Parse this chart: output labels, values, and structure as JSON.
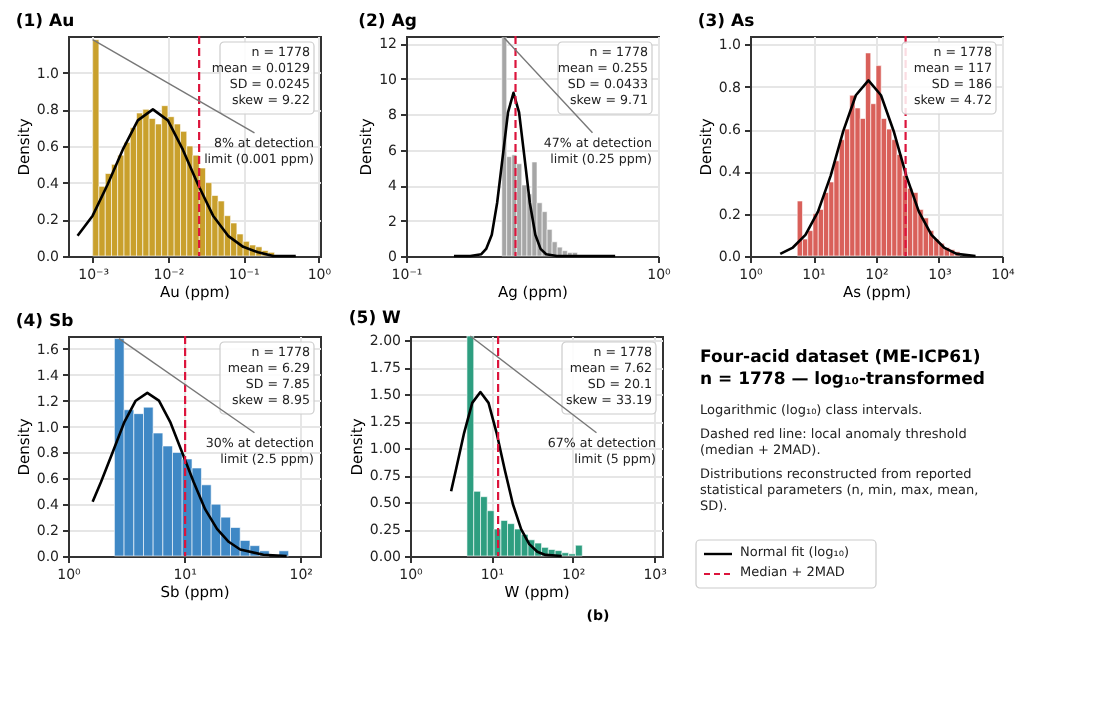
{
  "chart_data": [
    {
      "type": "histogram",
      "title": "(1) Au",
      "xlabel": "Au (ppm)",
      "ylabel": "Density",
      "log": "x",
      "grid": true,
      "xlim": [
        0.00047,
        1.05
      ],
      "xticks": [
        {
          "value": 0.001,
          "label": "10⁻³"
        },
        {
          "value": 0.01,
          "label": "10⁻²"
        },
        {
          "value": 0.1,
          "label": "10⁻¹"
        },
        {
          "value": 1,
          "label": "10⁰"
        }
      ],
      "ylim": [
        0,
        1.2
      ],
      "yticks": [
        {
          "value": 0,
          "label": "0.0"
        },
        {
          "value": 0.2,
          "label": "0.2"
        },
        {
          "value": 0.4,
          "label": "0.4"
        },
        {
          "value": 0.6,
          "label": "0.6"
        },
        {
          "value": 0.8,
          "label": "0.8"
        },
        {
          "value": 1,
          "label": "1.0"
        }
      ],
      "bins": [
        0.001,
        0.00121,
        0.00147,
        0.00178,
        0.00215,
        0.00261,
        0.00316,
        0.00383,
        0.00464,
        0.00562,
        0.00681,
        0.00825,
        0.01,
        0.0121,
        0.0147,
        0.0178,
        0.0215,
        0.0261,
        0.0316,
        0.0383,
        0.0464,
        0.0562,
        0.0681,
        0.0825,
        0.1,
        0.121,
        0.147,
        0.178,
        0.215,
        0.261
      ],
      "series": [
        {
          "color": "#c9a02c",
          "values": [
            1.18,
            0.38,
            0.45,
            0.5,
            0.55,
            0.62,
            0.7,
            0.78,
            0.8,
            0.75,
            0.72,
            0.82,
            0.76,
            0.72,
            0.68,
            0.6,
            0.55,
            0.48,
            0.4,
            0.33,
            0.3,
            0.22,
            0.18,
            0.12,
            0.08,
            0.06,
            0.05,
            0.03,
            0.02
          ]
        },
        {
          "type": "line",
          "color": "#000000",
          "x": [
            0.00063,
            0.001,
            0.00158,
            0.00251,
            0.00398,
            0.00631,
            0.01,
            0.0158,
            0.0251,
            0.0398,
            0.0631,
            0.1,
            0.158,
            0.251,
            0.5
          ],
          "values": [
            0.11,
            0.22,
            0.39,
            0.58,
            0.74,
            0.8,
            0.74,
            0.58,
            0.39,
            0.22,
            0.11,
            0.05,
            0.02,
            0,
            0
          ]
        }
      ],
      "ref_lines": [
        {
          "axis": "x",
          "value": 0.026,
          "color": "#dc143c",
          "line_style": "dashed"
        }
      ],
      "annotations": [
        "n = 1778",
        "mean = 0.0129",
        "SD = 0.0245",
        "skew = 9.22",
        {
          "text": "8% at detection\nlimit (0.001 ppm)",
          "x": 0.001,
          "y": 1.18
        }
      ]
    },
    {
      "type": "histogram",
      "title": "(2) Ag",
      "xlabel": "Ag (ppm)",
      "ylabel": "Density",
      "log": "x",
      "grid": true,
      "xlim": [
        0.1,
        1
      ],
      "xticks": [
        {
          "value": 0.1,
          "label": "10⁻¹"
        },
        {
          "value": 1,
          "label": "10⁰"
        }
      ],
      "ylim": [
        0,
        12.4
      ],
      "yticks": [
        0,
        2,
        4,
        6,
        8,
        10,
        12
      ],
      "bins": [
        0.24,
        0.251,
        0.263,
        0.275,
        0.288,
        0.302,
        0.316,
        0.331,
        0.347,
        0.363,
        0.38,
        0.398,
        0.417,
        0.437,
        0.457,
        0.479,
        0.501
      ],
      "series": [
        {
          "color": "#a6a6a6",
          "values": [
            12.3,
            5.6,
            5.7,
            5.2,
            4.0,
            3.5,
            5.3,
            3.0,
            2.5,
            1.5,
            0.8,
            0.5,
            0.3,
            0.2,
            0.2,
            null
          ]
        },
        {
          "type": "line",
          "color": "#000000",
          "x": [
            0.155,
            0.18,
            0.199,
            0.208,
            0.219,
            0.23,
            0.242,
            0.254,
            0.267,
            0.281,
            0.295,
            0.31,
            0.326,
            0.342,
            0.36,
            0.397,
            0.676
          ],
          "values": [
            0,
            0,
            0.1,
            0.4,
            1.2,
            3.0,
            5.6,
            8.1,
            9.2,
            8.1,
            5.6,
            3.0,
            1.2,
            0.4,
            0.1,
            0,
            0
          ]
        }
      ],
      "ref_lines": [
        {
          "axis": "x",
          "value": 0.272,
          "color": "#dc143c",
          "line_style": "dashed"
        }
      ],
      "annotations": [
        "n = 1778",
        "mean = 0.255",
        "SD = 0.0433",
        "skew = 9.71",
        {
          "text": "47% at detection\nlimit (0.25 ppm)",
          "x": 0.245,
          "y": 12.3
        }
      ]
    },
    {
      "type": "histogram",
      "title": "(3) As",
      "xlabel": "As (ppm)",
      "ylabel": "Density",
      "log": "x",
      "grid": true,
      "xlim": [
        1,
        10000
      ],
      "xticks": [
        {
          "value": 1,
          "label": "10⁰"
        },
        {
          "value": 10,
          "label": "10¹"
        },
        {
          "value": 100,
          "label": "10²"
        },
        {
          "value": 1000,
          "label": "10³"
        },
        {
          "value": 10000,
          "label": "10⁴"
        }
      ],
      "ylim": [
        0,
        1.04
      ],
      "yticks": [
        {
          "value": 0,
          "label": "0.0"
        },
        {
          "value": 0.2,
          "label": "0.2"
        },
        {
          "value": 0.4,
          "label": "0.4"
        },
        {
          "value": 0.6,
          "label": "0.6"
        },
        {
          "value": 0.8,
          "label": "0.8"
        },
        {
          "value": 1,
          "label": "1.0"
        }
      ],
      "bins": [
        5.62,
        6.81,
        8.25,
        10,
        12.1,
        14.7,
        17.8,
        21.5,
        26.1,
        31.6,
        38.3,
        46.4,
        56.2,
        68.1,
        82.5,
        100,
        121,
        147,
        178,
        215,
        261,
        316,
        383,
        464,
        562,
        681,
        825,
        1000,
        1210,
        1470,
        1780,
        2150
      ],
      "series": [
        {
          "color": "#d9605a",
          "values": [
            0.26,
            0.08,
            0.12,
            0.2,
            0.22,
            0.3,
            0.35,
            0.45,
            0.55,
            0.6,
            0.76,
            0.7,
            0.65,
            0.96,
            0.72,
            0.9,
            0.65,
            0.6,
            0.55,
            0.48,
            0.38,
            0.32,
            0.3,
            0.22,
            0.18,
            0.12,
            0.08,
            0.06,
            0.04,
            0.03,
            0.02
          ]
        },
        {
          "type": "line",
          "color": "#000000",
          "x": [
            3.02,
            4.79,
            7.59,
            12,
            19.1,
            30.2,
            47.9,
            75.9,
            120,
            191,
            302,
            479,
            759,
            1200,
            1905,
            3800
          ],
          "values": [
            0.01,
            0.04,
            0.1,
            0.21,
            0.38,
            0.59,
            0.76,
            0.83,
            0.76,
            0.59,
            0.38,
            0.21,
            0.1,
            0.04,
            0.01,
            0
          ]
        }
      ],
      "ref_lines": [
        {
          "axis": "x",
          "value": 295,
          "color": "#dc143c",
          "line_style": "dashed"
        }
      ],
      "annotations": [
        "n = 1778",
        "mean = 117",
        "SD = 186",
        "skew = 4.72"
      ]
    },
    {
      "type": "histogram",
      "title": "(4) Sb",
      "xlabel": "Sb (ppm)",
      "ylabel": "Density",
      "log": "x",
      "grid": true,
      "xlim": [
        1,
        148
      ],
      "xticks": [
        {
          "value": 1,
          "label": "10⁰"
        },
        {
          "value": 10,
          "label": "10¹"
        },
        {
          "value": 100,
          "label": "10²"
        }
      ],
      "ylim": [
        0,
        1.7
      ],
      "yticks": [
        {
          "value": 0,
          "label": "0.0"
        },
        {
          "value": 0.2,
          "label": "0.2"
        },
        {
          "value": 0.4,
          "label": "0.4"
        },
        {
          "value": 0.6,
          "label": "0.6"
        },
        {
          "value": 0.8,
          "label": "0.8"
        },
        {
          "value": 1,
          "label": "1.0"
        },
        {
          "value": 1.2,
          "label": "1.2"
        },
        {
          "value": 1.4,
          "label": "1.4"
        },
        {
          "value": 1.6,
          "label": "1.6"
        }
      ],
      "bins": [
        2.51,
        3.04,
        3.69,
        4.47,
        5.41,
        6.56,
        7.94,
        9.62,
        11.7,
        14.1,
        17.1,
        20.7,
        25.1,
        30.4,
        36.9,
        44.7,
        54.1,
        65.6,
        79.4
      ],
      "series": [
        {
          "color": "#3f88c5",
          "values": [
            1.68,
            1.13,
            1.1,
            1.15,
            0.95,
            0.85,
            0.8,
            0.75,
            0.68,
            0.55,
            0.4,
            0.3,
            0.22,
            0.12,
            0.08,
            0.04,
            null,
            0.04
          ]
        },
        {
          "type": "line",
          "color": "#000000",
          "x": [
            1.63,
            1.92,
            2.42,
            3.04,
            3.83,
            4.82,
            6.07,
            7.64,
            9.62,
            12.1,
            15.2,
            19.2,
            24.2,
            30.4,
            48.2,
            76.4
          ],
          "values": [
            0.42,
            0.57,
            0.8,
            1.03,
            1.2,
            1.26,
            1.2,
            1.03,
            0.8,
            0.57,
            0.36,
            0.21,
            0.11,
            0.05,
            0.01,
            0
          ]
        }
      ],
      "ref_lines": [
        {
          "axis": "x",
          "value": 10.2,
          "color": "#dc143c",
          "line_style": "dashed"
        }
      ],
      "annotations": [
        "n = 1778",
        "mean = 6.29",
        "SD = 7.85",
        "skew = 8.95",
        {
          "text": "30% at detection\nlimit (2.5 ppm)",
          "x": 2.75,
          "y": 1.68
        }
      ]
    },
    {
      "type": "histogram",
      "title": "(5) W",
      "xlabel": "W (ppm)",
      "ylabel": "Density",
      "log": "x",
      "grid": true,
      "xlim": [
        1,
        1250
      ],
      "xticks": [
        {
          "value": 1,
          "label": "10⁰"
        },
        {
          "value": 10,
          "label": "10¹"
        },
        {
          "value": 100,
          "label": "10²"
        },
        {
          "value": 1000,
          "label": "10³"
        }
      ],
      "ylim": [
        0,
        2.04
      ],
      "yticks": [
        {
          "value": 0,
          "label": "0.00"
        },
        {
          "value": 0.25,
          "label": "0.25"
        },
        {
          "value": 0.5,
          "label": "0.50"
        },
        {
          "value": 0.75,
          "label": "0.75"
        },
        {
          "value": 1,
          "label": "1.00"
        },
        {
          "value": 1.25,
          "label": "1.25"
        },
        {
          "value": 1.5,
          "label": "1.50"
        },
        {
          "value": 1.75,
          "label": "1.75"
        },
        {
          "value": 2,
          "label": "2.00"
        }
      ],
      "bins": [
        5.01,
        6.07,
        7.36,
        8.91,
        10.8,
        13.1,
        15.8,
        19.2,
        23.3,
        28.2,
        34.1,
        41.4,
        50.1,
        60.7,
        73.6,
        89.1,
        108,
        131
      ],
      "series": [
        {
          "color": "#2e9e80",
          "values": [
            2.04,
            0.6,
            0.55,
            0.42,
            0.25,
            0.33,
            0.3,
            0.25,
            0.2,
            0.15,
            0.12,
            0.08,
            0.06,
            0.05,
            0.03,
            0.02,
            0.1
          ]
        },
        {
          "type": "line",
          "color": "#000000",
          "x": [
            3.2,
            3.67,
            4.62,
            5.82,
            7.33,
            9.23,
            11.6,
            14.6,
            18.4,
            23.2,
            29.2,
            36.7,
            46.2,
            73.3
          ],
          "values": [
            0.6,
            0.8,
            1.14,
            1.42,
            1.52,
            1.42,
            1.14,
            0.8,
            0.48,
            0.25,
            0.11,
            0.04,
            0.01,
            0
          ]
        }
      ],
      "ref_lines": [
        {
          "axis": "x",
          "value": 12.1,
          "color": "#dc143c",
          "line_style": "dashed"
        }
      ],
      "annotations": [
        "n = 1778",
        "mean = 7.62",
        "SD = 20.1",
        "skew = 33.19",
        {
          "text": "67% at detection\nlimit (5 ppm)",
          "x": 5.5,
          "y": 2.04
        }
      ]
    },
    {
      "type": "other",
      "title": "Four-acid dataset (ME-ICP61)",
      "subtitle": "n = 1778 — log₁₀-transformed",
      "annotations": [
        "Logarithmic (log₁₀) class intervals.",
        "Dashed red line: local anomaly threshold (median + 2MAD).",
        "Distributions reconstructed from reported statistical parameters (n, min, max, mean, SD).",
        "Normal fit (log₁₀)",
        "Median + 2MAD",
        "(b)"
      ]
    }
  ]
}
